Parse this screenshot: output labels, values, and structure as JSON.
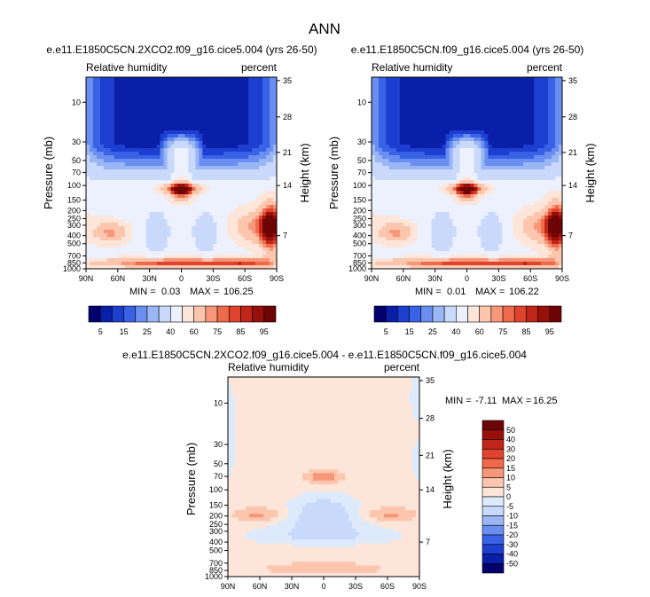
{
  "chart_data": {
    "title": "ANN",
    "colors": {
      "abs_scale": [
        "#03006e",
        "#0a1fa8",
        "#1c3fd0",
        "#3a62e6",
        "#6a8ff0",
        "#9ab6f5",
        "#c8d9fb",
        "#ecf1fd",
        "#fde6d9",
        "#fbc6ad",
        "#f6977a",
        "#ef6a4a",
        "#e0432d",
        "#c12518",
        "#97110a",
        "#6d0505"
      ],
      "diff_scale": [
        "#03006e",
        "#0a1fa8",
        "#1c3fd0",
        "#3a62e6",
        "#6a8ff0",
        "#9ab6f5",
        "#c8d9fb",
        "#ddeafc",
        "#fde6d9",
        "#fbc6ad",
        "#f6977a",
        "#ef6a4a",
        "#e0432d",
        "#c12518",
        "#97110a",
        "#6d0505"
      ]
    },
    "panels": [
      {
        "type": "heatmap",
        "title": "e.e11.E1850C5CN.2XCO2.f09_g16.cice5.004 (yrs 26-50)",
        "left_label": "Relative humidity",
        "right_label": "percent",
        "xlabel": "",
        "ylabel": "Pressure (mb)",
        "ylabel_right": "Height (km)",
        "x_ticks": [
          "90N",
          "60N",
          "30N",
          "0",
          "30S",
          "60S",
          "90S"
        ],
        "x_tick_lat": [
          90,
          60,
          30,
          0,
          -30,
          -60,
          -90
        ],
        "y_ticks": [
          "10",
          "30",
          "50",
          "70",
          "100",
          "150",
          "200",
          "250",
          "300",
          "400",
          "500",
          "700",
          "850",
          "1000"
        ],
        "y_tick_p": [
          10,
          30,
          50,
          70,
          100,
          150,
          200,
          250,
          300,
          400,
          500,
          700,
          850,
          1000
        ],
        "height_ticks": [
          "35",
          "28",
          "21",
          "14",
          "7"
        ],
        "height_tick_p": [
          5.5,
          15,
          40,
          100,
          400
        ],
        "ylim": [
          1000,
          5
        ],
        "xlim": [
          90,
          -90
        ],
        "min_label": "MIN =",
        "min_value": "0.03",
        "max_label": "MAX =",
        "max_value": "106.25",
        "colorbar_labels": [
          "5",
          "15",
          "25",
          "40",
          "60",
          "75",
          "85",
          "95"
        ]
      },
      {
        "type": "heatmap",
        "title": "e.e11.E1850C5CN.f09_g16.cice5.004 (yrs 26-50)",
        "left_label": "Relative humidity",
        "right_label": "percent",
        "xlabel": "",
        "ylabel": "Pressure (mb)",
        "ylabel_right": "Height (km)",
        "x_ticks": [
          "90N",
          "60N",
          "30N",
          "0",
          "30S",
          "60S",
          "90S"
        ],
        "x_tick_lat": [
          90,
          60,
          30,
          0,
          -30,
          -60,
          -90
        ],
        "y_ticks": [
          "10",
          "30",
          "50",
          "70",
          "100",
          "150",
          "200",
          "250",
          "300",
          "400",
          "500",
          "700",
          "850",
          "1000"
        ],
        "y_tick_p": [
          10,
          30,
          50,
          70,
          100,
          150,
          200,
          250,
          300,
          400,
          500,
          700,
          850,
          1000
        ],
        "height_ticks": [
          "35",
          "28",
          "21",
          "14",
          "7"
        ],
        "height_tick_p": [
          5.5,
          15,
          40,
          100,
          400
        ],
        "ylim": [
          1000,
          5
        ],
        "xlim": [
          90,
          -90
        ],
        "min_label": "MIN =",
        "min_value": "0.01",
        "max_label": "MAX =",
        "max_value": "106.22",
        "colorbar_labels": [
          "5",
          "15",
          "25",
          "40",
          "60",
          "75",
          "85",
          "95"
        ]
      },
      {
        "type": "heatmap",
        "title": "e.e11.E1850C5CN.2XCO2.f09_g16.cice5.004 - e.e11.E1850C5CN.f09_g16.cice5.004",
        "left_label": "Relative humidity",
        "right_label": "percent",
        "xlabel": "",
        "ylabel": "Pressure (mb)",
        "ylabel_right": "Height (km)",
        "x_ticks": [
          "90N",
          "60N",
          "30N",
          "0",
          "30S",
          "60S",
          "90S"
        ],
        "x_tick_lat": [
          90,
          60,
          30,
          0,
          -30,
          -60,
          -90
        ],
        "y_ticks": [
          "10",
          "30",
          "50",
          "70",
          "100",
          "150",
          "200",
          "250",
          "300",
          "400",
          "500",
          "700",
          "850",
          "1000"
        ],
        "y_tick_p": [
          10,
          30,
          50,
          70,
          100,
          150,
          200,
          250,
          300,
          400,
          500,
          700,
          850,
          1000
        ],
        "height_ticks": [
          "35",
          "28",
          "21",
          "14",
          "7"
        ],
        "height_tick_p": [
          5.5,
          15,
          40,
          100,
          400
        ],
        "ylim": [
          1000,
          5
        ],
        "xlim": [
          90,
          -90
        ],
        "min_label": "MIN =",
        "min_value": "-7.11",
        "max_label": "MAX =",
        "max_value": "16.25",
        "colorbar_labels": [
          "50",
          "40",
          "30",
          "20",
          "15",
          "10",
          "5",
          "0",
          "-5",
          "-10",
          "-15",
          "-20",
          "-30",
          "-40",
          "-50"
        ]
      }
    ]
  }
}
